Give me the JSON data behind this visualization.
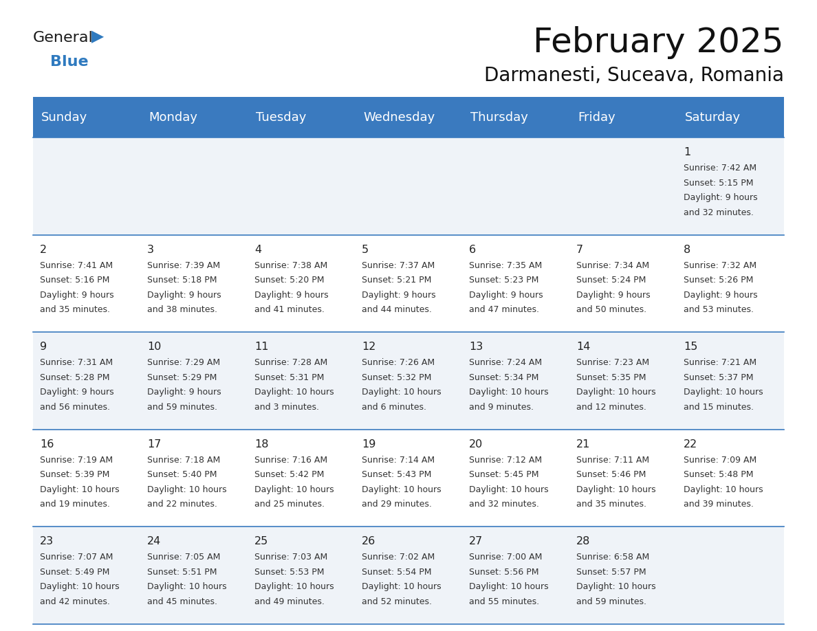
{
  "title": "February 2025",
  "subtitle": "Darmanesti, Suceava, Romania",
  "header_bg": "#3a7abf",
  "header_text_color": "#ffffff",
  "header_font_size": 13,
  "day_names": [
    "Sunday",
    "Monday",
    "Tuesday",
    "Wednesday",
    "Thursday",
    "Friday",
    "Saturday"
  ],
  "title_font_size": 36,
  "subtitle_font_size": 20,
  "cell_bg_odd": "#eff3f8",
  "cell_bg_even": "#ffffff",
  "cell_text_color": "#333333",
  "day_num_color": "#222222",
  "line_color": "#3a7abf",
  "logo_general_color": "#1a1a1a",
  "logo_blue_color": "#2f7abf",
  "calendar_data": [
    [
      null,
      null,
      null,
      null,
      null,
      null,
      {
        "day": 1,
        "sunrise": "7:42 AM",
        "sunset": "5:15 PM",
        "daylight": "9 hours and 32 minutes."
      }
    ],
    [
      {
        "day": 2,
        "sunrise": "7:41 AM",
        "sunset": "5:16 PM",
        "daylight": "9 hours and 35 minutes."
      },
      {
        "day": 3,
        "sunrise": "7:39 AM",
        "sunset": "5:18 PM",
        "daylight": "9 hours and 38 minutes."
      },
      {
        "day": 4,
        "sunrise": "7:38 AM",
        "sunset": "5:20 PM",
        "daylight": "9 hours and 41 minutes."
      },
      {
        "day": 5,
        "sunrise": "7:37 AM",
        "sunset": "5:21 PM",
        "daylight": "9 hours and 44 minutes."
      },
      {
        "day": 6,
        "sunrise": "7:35 AM",
        "sunset": "5:23 PM",
        "daylight": "9 hours and 47 minutes."
      },
      {
        "day": 7,
        "sunrise": "7:34 AM",
        "sunset": "5:24 PM",
        "daylight": "9 hours and 50 minutes."
      },
      {
        "day": 8,
        "sunrise": "7:32 AM",
        "sunset": "5:26 PM",
        "daylight": "9 hours and 53 minutes."
      }
    ],
    [
      {
        "day": 9,
        "sunrise": "7:31 AM",
        "sunset": "5:28 PM",
        "daylight": "9 hours and 56 minutes."
      },
      {
        "day": 10,
        "sunrise": "7:29 AM",
        "sunset": "5:29 PM",
        "daylight": "9 hours and 59 minutes."
      },
      {
        "day": 11,
        "sunrise": "7:28 AM",
        "sunset": "5:31 PM",
        "daylight": "10 hours and 3 minutes."
      },
      {
        "day": 12,
        "sunrise": "7:26 AM",
        "sunset": "5:32 PM",
        "daylight": "10 hours and 6 minutes."
      },
      {
        "day": 13,
        "sunrise": "7:24 AM",
        "sunset": "5:34 PM",
        "daylight": "10 hours and 9 minutes."
      },
      {
        "day": 14,
        "sunrise": "7:23 AM",
        "sunset": "5:35 PM",
        "daylight": "10 hours and 12 minutes."
      },
      {
        "day": 15,
        "sunrise": "7:21 AM",
        "sunset": "5:37 PM",
        "daylight": "10 hours and 15 minutes."
      }
    ],
    [
      {
        "day": 16,
        "sunrise": "7:19 AM",
        "sunset": "5:39 PM",
        "daylight": "10 hours and 19 minutes."
      },
      {
        "day": 17,
        "sunrise": "7:18 AM",
        "sunset": "5:40 PM",
        "daylight": "10 hours and 22 minutes."
      },
      {
        "day": 18,
        "sunrise": "7:16 AM",
        "sunset": "5:42 PM",
        "daylight": "10 hours and 25 minutes."
      },
      {
        "day": 19,
        "sunrise": "7:14 AM",
        "sunset": "5:43 PM",
        "daylight": "10 hours and 29 minutes."
      },
      {
        "day": 20,
        "sunrise": "7:12 AM",
        "sunset": "5:45 PM",
        "daylight": "10 hours and 32 minutes."
      },
      {
        "day": 21,
        "sunrise": "7:11 AM",
        "sunset": "5:46 PM",
        "daylight": "10 hours and 35 minutes."
      },
      {
        "day": 22,
        "sunrise": "7:09 AM",
        "sunset": "5:48 PM",
        "daylight": "10 hours and 39 minutes."
      }
    ],
    [
      {
        "day": 23,
        "sunrise": "7:07 AM",
        "sunset": "5:49 PM",
        "daylight": "10 hours and 42 minutes."
      },
      {
        "day": 24,
        "sunrise": "7:05 AM",
        "sunset": "5:51 PM",
        "daylight": "10 hours and 45 minutes."
      },
      {
        "day": 25,
        "sunrise": "7:03 AM",
        "sunset": "5:53 PM",
        "daylight": "10 hours and 49 minutes."
      },
      {
        "day": 26,
        "sunrise": "7:02 AM",
        "sunset": "5:54 PM",
        "daylight": "10 hours and 52 minutes."
      },
      {
        "day": 27,
        "sunrise": "7:00 AM",
        "sunset": "5:56 PM",
        "daylight": "10 hours and 55 minutes."
      },
      {
        "day": 28,
        "sunrise": "6:58 AM",
        "sunset": "5:57 PM",
        "daylight": "10 hours and 59 minutes."
      },
      null
    ]
  ]
}
